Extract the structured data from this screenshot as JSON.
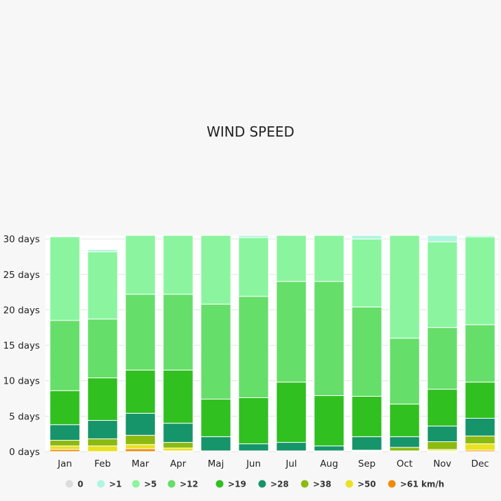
{
  "chart_data": {
    "type": "bar",
    "stacked": true,
    "title": "WIND SPEED",
    "categories": [
      "Jan",
      "Feb",
      "Mar",
      "Apr",
      "Maj",
      "Jun",
      "Jul",
      "Aug",
      "Sep",
      "Oct",
      "Nov",
      "Dec"
    ],
    "y_ticks": [
      "0 days",
      "5 days",
      "10 days",
      "15 days",
      "20 days",
      "25 days",
      "30 days"
    ],
    "ylim": [
      0,
      30.5
    ],
    "grid": true,
    "legend_position": "bottom",
    "series": [
      {
        "name": "0",
        "color": "#dcdcdc",
        "values": [
          0,
          0,
          0,
          0,
          0,
          0,
          0,
          0,
          0,
          0,
          0,
          0
        ]
      },
      {
        "name": ">1",
        "color": "#b0f5e0",
        "values": [
          0,
          0,
          0,
          0,
          0,
          0,
          0,
          0,
          0,
          0,
          0,
          0
        ]
      },
      {
        "name": ">5",
        "color": "#8af59e",
        "values": [
          0,
          0,
          0,
          0,
          0,
          0,
          0,
          0,
          0,
          0,
          0,
          0
        ]
      },
      {
        "name": ">12",
        "color": "#66de6a",
        "values": [
          0,
          0,
          0,
          0,
          0,
          0,
          0,
          0,
          0,
          0,
          0,
          0
        ]
      },
      {
        "name": ">19",
        "color": "#30c020",
        "values": [
          0,
          0,
          0,
          0,
          0,
          0,
          0,
          0,
          0,
          0,
          0,
          0
        ]
      },
      {
        "name": ">28",
        "color": "#16946a",
        "values": [
          0,
          0,
          0,
          0,
          0,
          0,
          0,
          0,
          0,
          0,
          0,
          0
        ]
      },
      {
        "name": ">38",
        "color": "#8cba10",
        "values": [
          0,
          0,
          0,
          0,
          0,
          0,
          0,
          0,
          0,
          0,
          0,
          0
        ]
      },
      {
        "name": ">50",
        "color": "#e8e220",
        "values": [
          0,
          0,
          0,
          0,
          0,
          0,
          0,
          0,
          0,
          0,
          0,
          0
        ]
      },
      {
        "name": ">61 km/h",
        "color": "#ef8c0c",
        "values": [
          0,
          0,
          0,
          0,
          0,
          0,
          0,
          0,
          0,
          0,
          0,
          0
        ]
      }
    ],
    "cumulative_tops": [
      [
        0.3,
        0.8,
        1.6,
        3.8,
        8.6,
        18.5,
        30.3,
        30.3,
        30.3
      ],
      [
        0.0,
        0.8,
        1.8,
        4.4,
        10.4,
        18.7,
        28.2,
        28.5,
        28.5
      ],
      [
        0.4,
        1.0,
        2.3,
        5.4,
        11.5,
        22.2,
        30.5,
        30.5,
        30.5
      ],
      [
        0.1,
        0.5,
        1.3,
        4.0,
        11.5,
        22.2,
        30.5,
        30.5,
        30.5
      ],
      [
        0.0,
        0.0,
        0.1,
        2.1,
        7.4,
        20.8,
        30.5,
        30.5,
        30.5
      ],
      [
        0.0,
        0.0,
        0.1,
        1.1,
        7.6,
        21.9,
        30.2,
        30.5,
        30.5
      ],
      [
        0.0,
        0.0,
        0.1,
        1.3,
        9.8,
        24.0,
        30.5,
        30.5,
        30.5
      ],
      [
        0.0,
        0.0,
        0.1,
        0.8,
        7.9,
        24.0,
        30.5,
        30.5,
        30.5
      ],
      [
        0.0,
        0.1,
        0.2,
        2.1,
        7.8,
        20.4,
        30.0,
        30.5,
        30.5
      ],
      [
        0.0,
        0.1,
        0.6,
        2.1,
        6.7,
        16.0,
        30.5,
        30.5,
        30.5
      ],
      [
        0.1,
        0.3,
        1.4,
        3.6,
        8.8,
        17.5,
        29.6,
        30.5,
        30.5
      ],
      [
        0.2,
        1.1,
        2.2,
        4.7,
        9.8,
        17.9,
        30.3,
        30.5,
        30.5
      ]
    ]
  }
}
